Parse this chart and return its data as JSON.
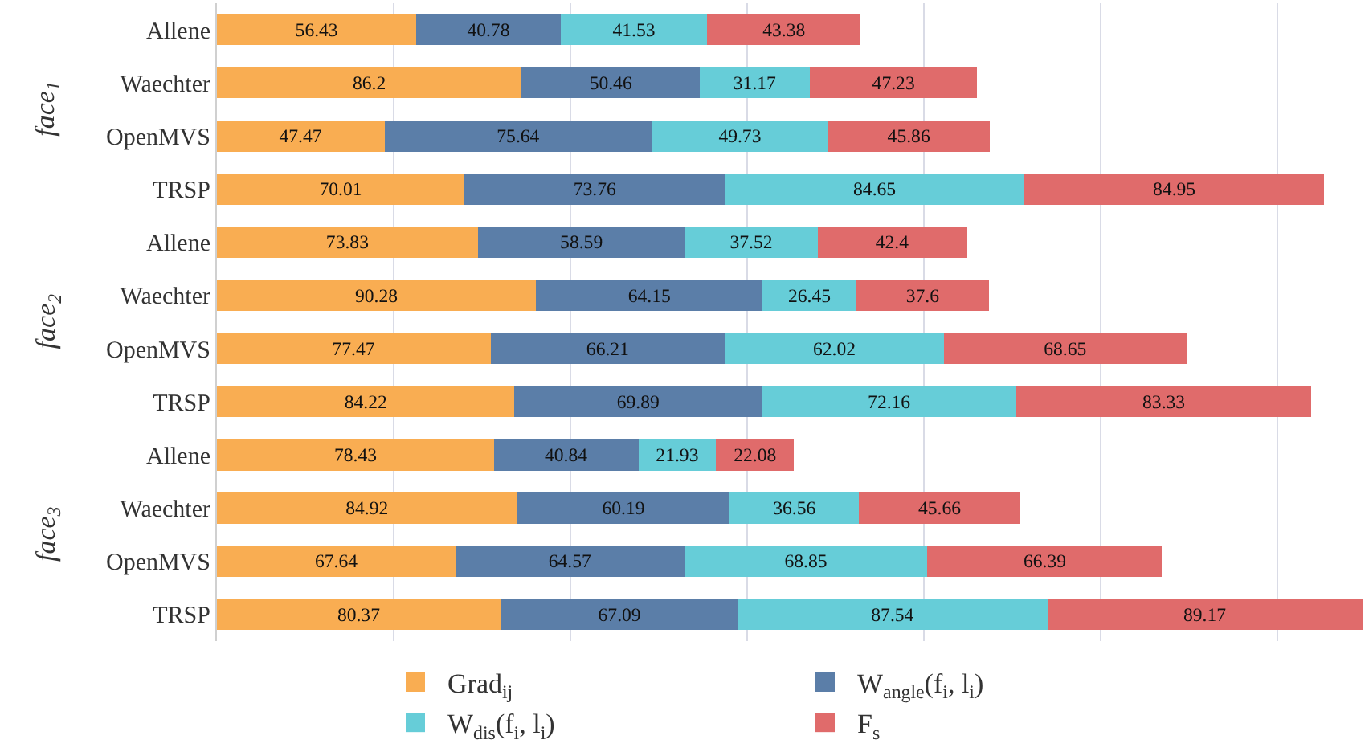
{
  "chart_data": {
    "type": "bar",
    "orientation": "horizontal",
    "stacked": true,
    "data_labels": true,
    "grid": "x",
    "legend": "bottom",
    "tick_labels": "y",
    "categories": [
      "Allene",
      "Waechter",
      "OpenMVS",
      "TRSP",
      "Allene",
      "Waechter",
      "OpenMVS",
      "TRSP",
      "Allene",
      "Waechter",
      "OpenMVS",
      "TRSP"
    ],
    "annotations": [
      "face$_{1}$",
      "face$_{2}$",
      "face$_{3}$"
    ],
    "xlim": [
      0,
      326
    ],
    "xticks": [
      {
        "value": 0,
        "label": null
      },
      {
        "value": 50,
        "label": null
      },
      {
        "value": 100,
        "label": null
      },
      {
        "value": 150,
        "label": null
      },
      {
        "value": 200,
        "label": null
      },
      {
        "value": 250,
        "label": null
      },
      {
        "value": 300,
        "label": null
      }
    ],
    "series": [
      {
        "name": "Grad$_{ij}$",
        "color": "#f9ad52",
        "values": [
          56.43,
          86.2,
          47.47,
          70.01,
          73.83,
          90.28,
          77.47,
          84.22,
          78.43,
          84.92,
          67.64,
          80.37
        ]
      },
      {
        "name": "W$_{angle}$(f$_{i}$, l$_{i}$)",
        "color": "#5b7ea8",
        "values": [
          40.78,
          50.46,
          75.64,
          73.76,
          58.59,
          64.15,
          66.21,
          69.89,
          40.84,
          60.19,
          64.57,
          67.09
        ]
      },
      {
        "name": "W$_{dis}$(f$_{i}$, l$_{i}$)",
        "color": "#66cdd8",
        "values": [
          41.53,
          31.17,
          49.73,
          84.65,
          37.52,
          26.45,
          62.02,
          72.16,
          21.93,
          36.56,
          68.85,
          87.54
        ]
      },
      {
        "name": "F$_{s}$",
        "color": "#e06b6b",
        "values": [
          43.38,
          47.23,
          45.86,
          84.95,
          42.4,
          37.6,
          68.65,
          83.33,
          22.08,
          45.66,
          66.39,
          89.17
        ]
      }
    ]
  }
}
